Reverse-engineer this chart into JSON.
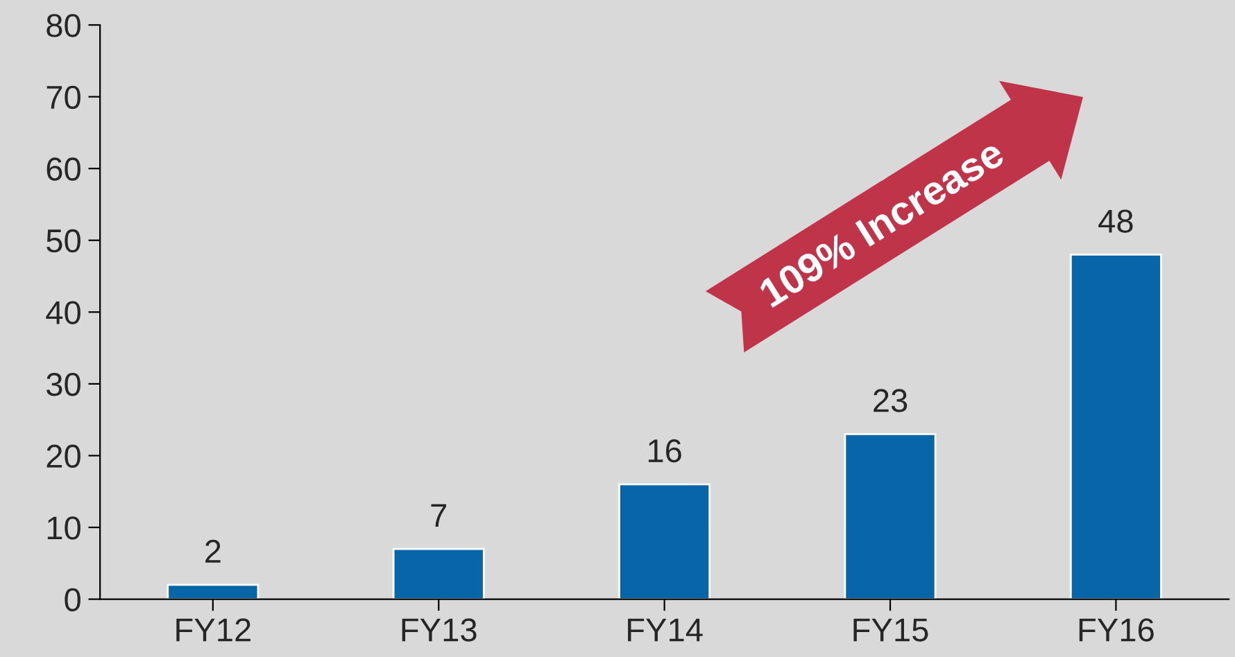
{
  "chart_data": {
    "type": "bar",
    "categories": [
      "FY12",
      "FY13",
      "FY14",
      "FY15",
      "FY16"
    ],
    "values": [
      2,
      7,
      16,
      23,
      48
    ],
    "color": "#0765a8",
    "ylim": [
      0,
      80
    ],
    "yticks": [
      0,
      10,
      20,
      30,
      40,
      50,
      60,
      70,
      80
    ],
    "data_labels": true,
    "grid": false,
    "legend": false,
    "annotations": [
      "109% Increase"
    ]
  }
}
